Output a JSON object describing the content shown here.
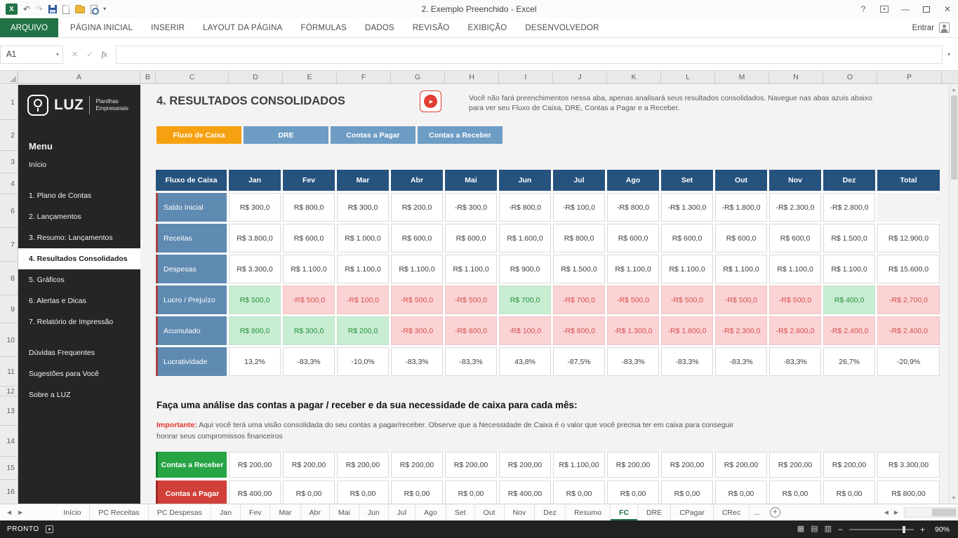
{
  "window": {
    "title": "2. Exemplo Preenchido - Excel"
  },
  "ribbon": {
    "file_tab": "ARQUIVO",
    "tabs": [
      "PÁGINA INICIAL",
      "INSERIR",
      "LAYOUT DA PÁGINA",
      "FÓRMULAS",
      "DADOS",
      "REVISÃO",
      "EXIBIÇÃO",
      "DESENVOLVEDOR"
    ],
    "sign_in": "Entrar"
  },
  "formula_bar": {
    "name_box": "A1",
    "fx_label": "fx"
  },
  "sheet": {
    "columns": [
      "A",
      "B",
      "C",
      "D",
      "E",
      "F",
      "G",
      "H",
      "I",
      "J",
      "K",
      "L",
      "M",
      "N",
      "O",
      "P"
    ],
    "row_numbers": [
      "1",
      "2",
      "3",
      "4",
      "6",
      "7",
      "8",
      "9",
      "10",
      "11",
      "12",
      "13",
      "14",
      "15",
      "16"
    ]
  },
  "sidebar": {
    "logo": {
      "text": "LUZ",
      "line1": "Planilhas",
      "line2": "Empresariais"
    },
    "menu_title": "Menu",
    "items": [
      {
        "label": "Início"
      },
      {
        "label": "1. Plano de Contas",
        "group_start": true
      },
      {
        "label": "2. Lançamentos"
      },
      {
        "label": "3. Resumo: Lançamentos"
      },
      {
        "label": "4. Resultados Consolidados",
        "active": true
      },
      {
        "label": "5. Gráficos"
      },
      {
        "label": "6. Alertas e Dicas"
      },
      {
        "label": "7. Relatório de Impressão"
      },
      {
        "label": "Dúvidas Frequentes",
        "group_start": true
      },
      {
        "label": "Sugestões para Você"
      },
      {
        "label": "Sobre a LUZ"
      }
    ]
  },
  "main": {
    "title": "4. RESULTADOS CONSOLIDADOS",
    "description": "Você não fará preenchimentos nessa aba, apenas analisará seus resultados consolidados. Navegue nas abas azuis abaixo para ver seu Fluxo de Caixa, DRE, Contas a Pagar e a Receber.",
    "nav_buttons": [
      {
        "label": "Fluxo de Caixa",
        "active": true
      },
      {
        "label": "DRE"
      },
      {
        "label": "Contas a Pagar"
      },
      {
        "label": "Contas a Receber"
      }
    ],
    "analysis_heading": "Faça uma análise das contas a pagar / receber e da sua necessidade de caixa para cada mês:",
    "important_label": "Importante:",
    "important_text": " Aqui você terá uma visão consolidada do seu contas a pagar/receber. Observe que a Necessidade de Caixa é o valor que você precisa ter em caixa para conseguir honrar seus compromissos financeiros"
  },
  "cashflow_table": {
    "header": [
      "Fluxo de Caixa",
      "Jan",
      "Fev",
      "Mar",
      "Abr",
      "Mai",
      "Jun",
      "Jul",
      "Ago",
      "Set",
      "Out",
      "Nov",
      "Dez",
      "Total"
    ],
    "rows": [
      {
        "label": "Saldo Inicial",
        "values": [
          "R$ 300,0",
          "R$ 800,0",
          "R$ 300,0",
          "R$ 200,0",
          "-R$ 300,0",
          "-R$ 800,0",
          "-R$ 100,0",
          "-R$ 800,0",
          "-R$ 1.300,0",
          "-R$ 1.800,0",
          "-R$ 2.300,0",
          "-R$ 2.800,0",
          ""
        ],
        "states": "nnnnnnnnnnnne"
      },
      {
        "label": "Receitas",
        "values": [
          "R$ 3.800,0",
          "R$ 600,0",
          "R$ 1.000,0",
          "R$ 600,0",
          "R$ 600,0",
          "R$ 1.600,0",
          "R$ 800,0",
          "R$ 600,0",
          "R$ 600,0",
          "R$ 600,0",
          "R$ 600,0",
          "R$ 1.500,0",
          "R$ 12.900,0"
        ],
        "states": "nnnnnnnnnnnnn"
      },
      {
        "label": "Despesas",
        "values": [
          "R$ 3.300,0",
          "R$ 1.100,0",
          "R$ 1.100,0",
          "R$ 1.100,0",
          "R$ 1.100,0",
          "R$ 900,0",
          "R$ 1.500,0",
          "R$ 1.100,0",
          "R$ 1.100,0",
          "R$ 1.100,0",
          "R$ 1.100,0",
          "R$ 1.100,0",
          "R$ 15.600,0"
        ],
        "states": "nnnnnnnnnnnnn"
      },
      {
        "label": "Lucro / Prejuízo",
        "values": [
          "R$ 500,0",
          "-R$ 500,0",
          "-R$ 100,0",
          "-R$ 500,0",
          "-R$ 500,0",
          "R$ 700,0",
          "-R$ 700,0",
          "-R$ 500,0",
          "-R$ 500,0",
          "-R$ 500,0",
          "-R$ 500,0",
          "R$ 400,0",
          "-R$ 2.700,0"
        ],
        "states": "grrrrgrrrrrgr"
      },
      {
        "label": "Acumulado",
        "values": [
          "R$ 800,0",
          "R$ 300,0",
          "R$ 200,0",
          "-R$ 300,0",
          "-R$ 800,0",
          "-R$ 100,0",
          "-R$ 800,0",
          "-R$ 1.300,0",
          "-R$ 1.800,0",
          "-R$ 2.300,0",
          "-R$ 2.800,0",
          "-R$ 2.400,0",
          "-R$ 2.400,0"
        ],
        "states": "gggrrrrrrrrrr"
      },
      {
        "label": "Lucratividade",
        "values": [
          "13,2%",
          "-83,3%",
          "-10,0%",
          "-83,3%",
          "-83,3%",
          "43,8%",
          "-87,5%",
          "-83,3%",
          "-83,3%",
          "-83,3%",
          "-83,3%",
          "26,7%",
          "-20,9%"
        ],
        "states": "nnnnnnnnnnnnn"
      }
    ]
  },
  "accounts_table": {
    "rows": [
      {
        "label": "Contas a Receber",
        "color": "green",
        "values": [
          "R$ 200,00",
          "R$ 200,00",
          "R$ 200,00",
          "R$ 200,00",
          "R$ 200,00",
          "R$ 200,00",
          "R$ 1.100,00",
          "R$ 200,00",
          "R$ 200,00",
          "R$ 200,00",
          "R$ 200,00",
          "R$ 200,00",
          "R$ 3.300,00"
        ]
      },
      {
        "label": "Contas a Pagar",
        "color": "red",
        "values": [
          "R$ 400,00",
          "R$ 0,00",
          "R$ 0,00",
          "R$ 0,00",
          "R$ 0,00",
          "R$ 400,00",
          "R$ 0,00",
          "R$ 0,00",
          "R$ 0,00",
          "R$ 0,00",
          "R$ 0,00",
          "R$ 0,00",
          "R$ 800,00"
        ]
      }
    ]
  },
  "sheet_tabs": {
    "tabs": [
      {
        "label": "Início"
      },
      {
        "label": "PC Receitas"
      },
      {
        "label": "PC Despesas"
      },
      {
        "label": "Jan"
      },
      {
        "label": "Fev"
      },
      {
        "label": "Mar"
      },
      {
        "label": "Abr"
      },
      {
        "label": "Mai"
      },
      {
        "label": "Jun"
      },
      {
        "label": "Jul"
      },
      {
        "label": "Ago"
      },
      {
        "label": "Set"
      },
      {
        "label": "Out"
      },
      {
        "label": "Nov"
      },
      {
        "label": "Dez"
      },
      {
        "label": "Resumo"
      },
      {
        "label": "FC",
        "active": true
      },
      {
        "label": "DRE"
      },
      {
        "label": "CPagar"
      },
      {
        "label": "CRec"
      }
    ],
    "overflow": "..."
  },
  "status_bar": {
    "mode": "PRONTO",
    "zoom_level": "90%"
  },
  "colors": {
    "accent_green": "#217346",
    "header_navy": "#26527e",
    "label_blue": "#5f8ab2",
    "positive_bg": "#c8edd2",
    "positive_text": "#23913c",
    "negative_bg": "#fbd3d5",
    "negative_text": "#d4504d",
    "receber_green": "#27a444",
    "pagar_red": "#d04038",
    "button_orange": "#f6a111",
    "button_blue": "#6d9cc4"
  },
  "icons": {
    "undo": "↶",
    "redo": "↷",
    "dropdown": "▾",
    "cancel": "✕",
    "check": "✓",
    "help": "?",
    "close": "✕",
    "minimize": "—",
    "play": "▶",
    "chevron_down": "▾",
    "scroll_left": "◀",
    "scroll_right": "▶",
    "scroll_up": "▲",
    "scroll_down": "▼",
    "add_sheet": "+",
    "view_normal": "▦",
    "view_layout": "▤",
    "view_break": "▥",
    "zoom_out": "−",
    "zoom_in": "+"
  }
}
